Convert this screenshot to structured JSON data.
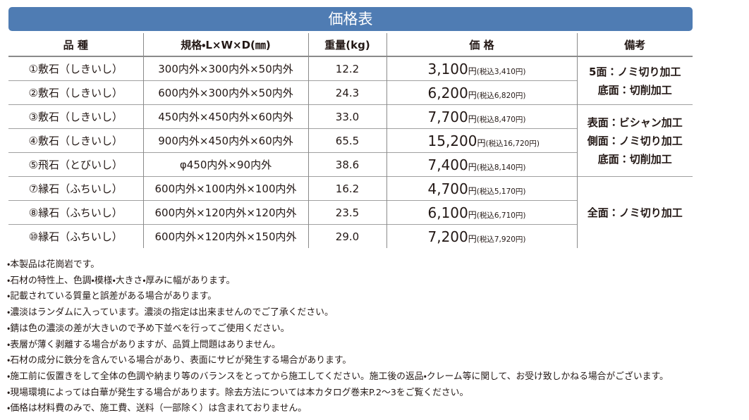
{
  "header": {
    "title": "価格表"
  },
  "table": {
    "columns": [
      "品 種",
      "規格・L×W×D(㎜)",
      "重量(kg)",
      "価 格",
      "備考"
    ],
    "rows": [
      {
        "name": "①敷石（しきいし）",
        "size": "300内外×300内外×50内外",
        "weight": "12.2",
        "price": "3,100",
        "unit": "円",
        "tax": "(税込3,410円)"
      },
      {
        "name": "②敷石（しきいし）",
        "size": "600内外×300内外×50内外",
        "weight": "24.3",
        "price": "6,200",
        "unit": "円",
        "tax": "(税込6,820円)"
      },
      {
        "name": "③敷石（しきいし）",
        "size": "450内外×450内外×60内外",
        "weight": "33.0",
        "price": "7,700",
        "unit": "円",
        "tax": "(税込8,470円)"
      },
      {
        "name": "④敷石（しきいし）",
        "size": "900内外×450内外×60内外",
        "weight": "65.5",
        "price": "15,200",
        "unit": "円",
        "tax": "(税込16,720円)"
      },
      {
        "name": "⑤飛石（とびいし）",
        "size": "φ450内外×90内外",
        "weight": "38.6",
        "price": "7,400",
        "unit": "円",
        "tax": "(税込8,140円)"
      },
      {
        "name": "⑦縁石（ふちいし）",
        "size": "600内外×100内外×100内外",
        "weight": "16.2",
        "price": "4,700",
        "unit": "円",
        "tax": "(税込5,170円)"
      },
      {
        "name": "⑧縁石（ふちいし）",
        "size": "600内外×120内外×120内外",
        "weight": "23.5",
        "price": "6,100",
        "unit": "円",
        "tax": "(税込6,710円)"
      },
      {
        "name": "⑩縁石（ふちいし）",
        "size": "600内外×120内外×150内外",
        "weight": "29.0",
        "price": "7,200",
        "unit": "円",
        "tax": "(税込7,920円)"
      }
    ],
    "remarks": [
      [
        "5面：ノミ切り加工",
        "底面：切削加工"
      ],
      [
        "表面：ビシャン加工",
        "側面：ノミ切り加工",
        "底面：切削加工"
      ],
      [
        "全面：ノミ切り加工"
      ]
    ]
  },
  "notes": [
    "・本製品は花崗岩です。",
    "・石材の特性上、色調・模様・大きさ・厚みに幅があります。",
    "・記載されている質量と誤差がある場合があります。",
    "・濃淡はランダムに入っています。濃淡の指定は出来ませんのでご了承ください。",
    "・錆は色の濃淡の差が大きいので予め下並べを行ってご使用ください。",
    "・表層が薄く剥離する場合がありますが、品質上問題はありません。",
    "・石材の成分に鉄分を含んでいる場合があり、表面にサビが発生する場合があります。",
    "・施工前に仮置きをして全体の色調や納まり等のバランスをとってから施工してください。施工後の返品・クレーム等に関して、お受け致しかねる場合がございます。",
    "・現場環境によっては白華が発生する場合があります。除去方法については本カタログ巻末P.2～3をご覧ください。",
    "・価格は材料費のみで、施工費、送料（一部除く）は含まれておりません。"
  ]
}
